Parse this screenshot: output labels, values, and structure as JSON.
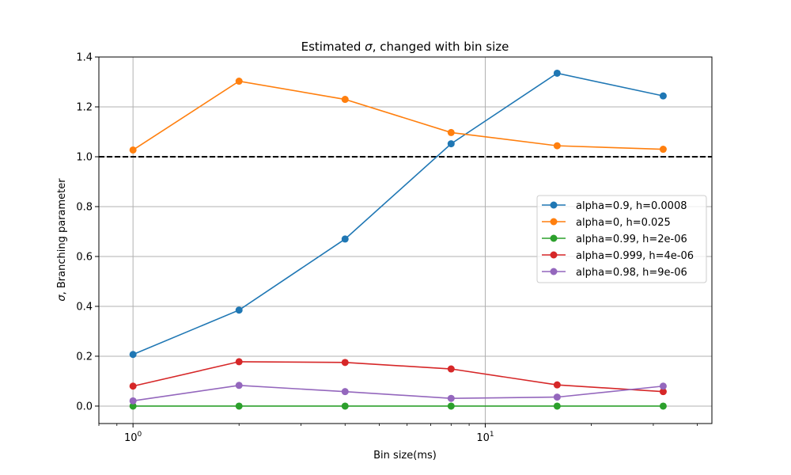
{
  "chart_data": {
    "type": "line",
    "title": "Estimated σ, changed with bin size",
    "title_parts": {
      "prefix": "Estimated ",
      "symbol": "σ",
      "suffix": ", changed with bin size"
    },
    "xlabel": "Bin size(ms)",
    "ylabel": "σ, Branching parameter",
    "ylabel_parts": {
      "symbol": "σ",
      "suffix": ", Branching parameter"
    },
    "x_scale": "log",
    "xlim": [
      0.8,
      44
    ],
    "ylim": [
      -0.07,
      1.4
    ],
    "x_ticks": [
      {
        "value": 1,
        "base": "10",
        "exp": "0"
      },
      {
        "value": 10,
        "base": "10",
        "exp": "1"
      }
    ],
    "y_ticks": [
      {
        "value": 0.0,
        "label": "0.0"
      },
      {
        "value": 0.2,
        "label": "0.2"
      },
      {
        "value": 0.4,
        "label": "0.4"
      },
      {
        "value": 0.6,
        "label": "0.6"
      },
      {
        "value": 0.8,
        "label": "0.8"
      },
      {
        "value": 1.0,
        "label": "1.0"
      },
      {
        "value": 1.2,
        "label": "1.2"
      },
      {
        "value": 1.4,
        "label": "1.4"
      }
    ],
    "grid": true,
    "legend_position": "center-right",
    "reference_line": {
      "y": 1.0,
      "style": "dashed",
      "color": "#000000"
    },
    "x": [
      1,
      2,
      4,
      8,
      16,
      32
    ],
    "series": [
      {
        "name": "alpha=0.9, h=0.0008",
        "color": "#1f77b4",
        "values": [
          0.207,
          0.385,
          0.67,
          1.052,
          1.335,
          1.244
        ]
      },
      {
        "name": "alpha=0, h=0.025",
        "color": "#ff7f0e",
        "values": [
          1.027,
          1.303,
          1.23,
          1.097,
          1.044,
          1.03
        ]
      },
      {
        "name": "alpha=0.99, h=2e-06",
        "color": "#2ca02c",
        "values": [
          0.0,
          0.0,
          0.0,
          0.0,
          0.0,
          0.0
        ]
      },
      {
        "name": "alpha=0.999, h=4e-06",
        "color": "#d62728",
        "values": [
          0.08,
          0.178,
          0.175,
          0.149,
          0.085,
          0.058
        ]
      },
      {
        "name": "alpha=0.98, h=9e-06",
        "color": "#9467bd",
        "values": [
          0.021,
          0.083,
          0.058,
          0.031,
          0.036,
          0.08
        ]
      }
    ]
  }
}
